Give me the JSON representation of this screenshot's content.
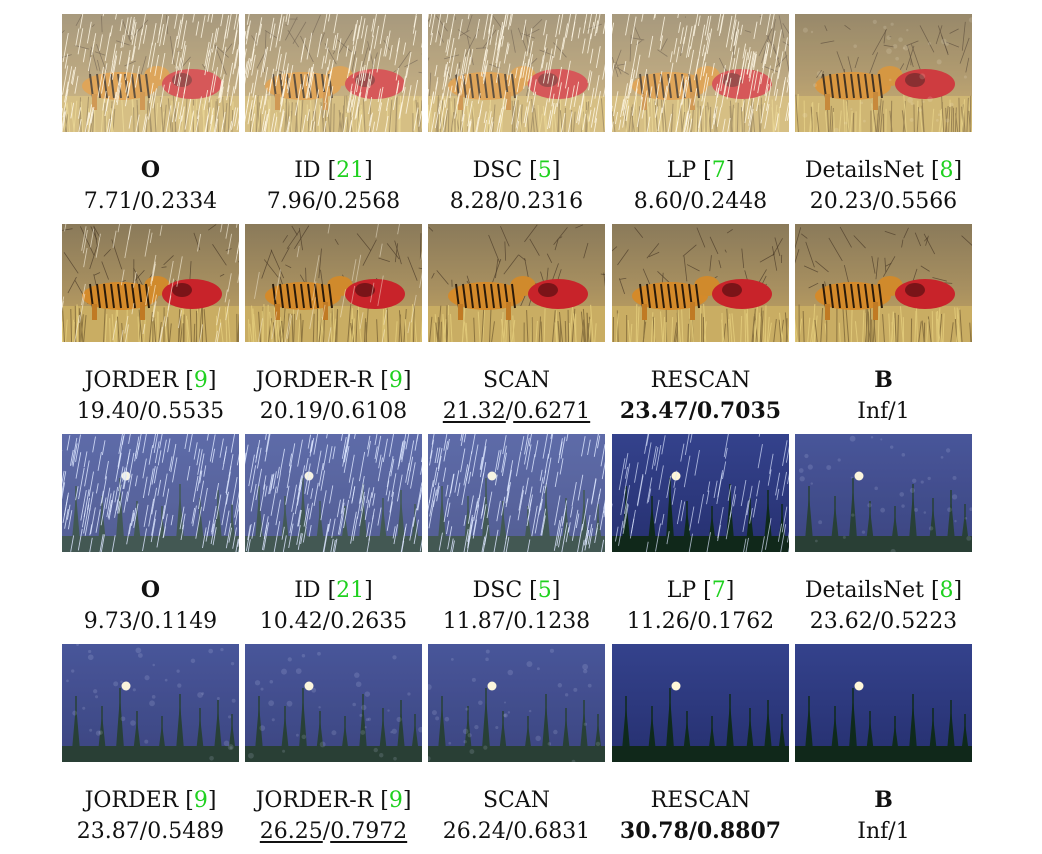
{
  "groups": [
    {
      "scene": "tiger",
      "rows": [
        {
          "captions": [
            {
              "method": "O",
              "method_bold": true,
              "ref": "",
              "psnr": "7.71",
              "ssim": "0.2334",
              "rain": "heavy"
            },
            {
              "method": "ID ",
              "method_bold": false,
              "ref": "21",
              "psnr": "7.96",
              "ssim": "0.2568",
              "rain": "heavy"
            },
            {
              "method": "DSC ",
              "method_bold": false,
              "ref": "5",
              "psnr": "8.28",
              "ssim": "0.2316",
              "rain": "heavy"
            },
            {
              "method": "LP ",
              "method_bold": false,
              "ref": "7",
              "psnr": "8.60",
              "ssim": "0.2448",
              "rain": "heavy"
            },
            {
              "method": "DetailsNet ",
              "method_bold": false,
              "ref": "8",
              "psnr": "20.23",
              "ssim": "0.5566",
              "rain": "haze"
            }
          ]
        },
        {
          "captions": [
            {
              "method": "JORDER ",
              "method_bold": false,
              "ref": "9",
              "psnr": "19.40",
              "ssim": "0.5535",
              "rain": "light"
            },
            {
              "method": "JORDER-R ",
              "method_bold": false,
              "ref": "9",
              "psnr": "20.19",
              "ssim": "0.6108",
              "rain": "faint"
            },
            {
              "method": "SCAN",
              "method_bold": false,
              "ref": "",
              "psnr": "21.32",
              "ssim": "0.6271",
              "style": "underline",
              "rain": "none"
            },
            {
              "method": "RESCAN",
              "method_bold": false,
              "ref": "",
              "psnr": "23.47",
              "ssim": "0.7035",
              "style": "bold",
              "rain": "none"
            },
            {
              "method": "B",
              "method_bold": true,
              "ref": "",
              "psnr": "Inf",
              "ssim": "1",
              "rain": "none"
            }
          ]
        }
      ]
    },
    {
      "scene": "moon",
      "rows": [
        {
          "captions": [
            {
              "method": "O",
              "method_bold": true,
              "ref": "",
              "psnr": "9.73",
              "ssim": "0.1149",
              "rain": "heavy"
            },
            {
              "method": "ID ",
              "method_bold": false,
              "ref": "21",
              "psnr": "10.42",
              "ssim": "0.2635",
              "rain": "heavy"
            },
            {
              "method": "DSC ",
              "method_bold": false,
              "ref": "5",
              "psnr": "11.87",
              "ssim": "0.1238",
              "rain": "heavy"
            },
            {
              "method": "LP ",
              "method_bold": false,
              "ref": "7",
              "psnr": "11.26",
              "ssim": "0.1762",
              "rain": "medium"
            },
            {
              "method": "DetailsNet ",
              "method_bold": false,
              "ref": "8",
              "psnr": "23.62",
              "ssim": "0.5223",
              "rain": "haze"
            }
          ]
        },
        {
          "captions": [
            {
              "method": "JORDER ",
              "method_bold": false,
              "ref": "9",
              "psnr": "23.87",
              "ssim": "0.5489",
              "rain": "haze"
            },
            {
              "method": "JORDER-R ",
              "method_bold": false,
              "ref": "9",
              "psnr": "26.25",
              "ssim": "0.7972",
              "style": "underline",
              "rain": "haze"
            },
            {
              "method": "SCAN",
              "method_bold": false,
              "ref": "",
              "psnr": "26.24",
              "ssim": "0.6831",
              "rain": "haze"
            },
            {
              "method": "RESCAN",
              "method_bold": false,
              "ref": "",
              "psnr": "30.78",
              "ssim": "0.8807",
              "style": "bold",
              "rain": "none"
            },
            {
              "method": "B",
              "method_bold": true,
              "ref": "",
              "psnr": "Inf",
              "ssim": "1",
              "rain": "none"
            }
          ]
        }
      ]
    }
  ],
  "colors": {
    "ref_link": "#1fd11f",
    "text": "#111111"
  }
}
